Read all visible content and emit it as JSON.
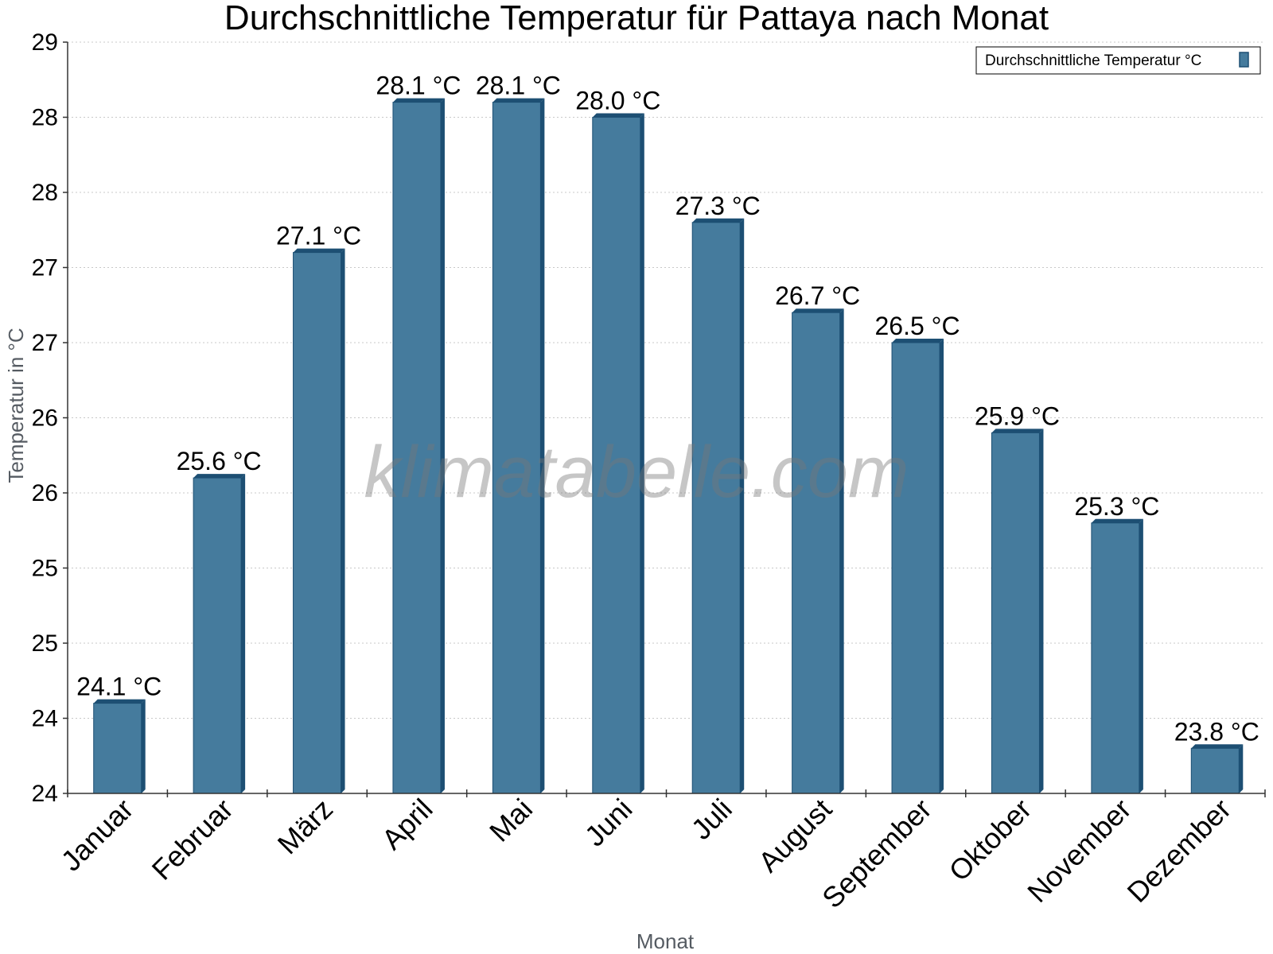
{
  "chart_data": {
    "type": "bar",
    "title": "Durchschnittliche Temperatur für Pattaya nach Monat",
    "xlabel": "Monat",
    "ylabel": "Temperatur in °C",
    "categories": [
      "Januar",
      "Februar",
      "März",
      "April",
      "Mai",
      "Juni",
      "Juli",
      "August",
      "September",
      "Oktober",
      "November",
      "Dezember"
    ],
    "series": [
      {
        "name": "Durchschnittliche Temperatur °C",
        "values": [
          24.1,
          25.6,
          27.1,
          28.1,
          28.1,
          28.0,
          27.3,
          26.7,
          26.5,
          25.9,
          25.3,
          23.8
        ],
        "labels": [
          "24.1 °C",
          "25.6 °C",
          "27.1 °C",
          "28.1 °C",
          "28.1 °C",
          "28.0 °C",
          "27.3 °C",
          "26.7 °C",
          "26.5 °C",
          "25.9 °C",
          "25.3 °C",
          "23.8 °C"
        ]
      }
    ],
    "ylim": [
      23.5,
      28.5
    ],
    "yticks": [
      23.5,
      24.0,
      24.5,
      25.0,
      25.5,
      26.0,
      26.5,
      27.0,
      27.5,
      28.0,
      28.5
    ],
    "ytick_labels": [
      "24",
      "24",
      "25",
      "25",
      "26",
      "26",
      "27",
      "27",
      "28",
      "28",
      "29"
    ],
    "grid": true,
    "legend_position": "top-right",
    "colors": {
      "bar": "#457b9d",
      "bar_side": "#1d4f73",
      "bar_top": "#1d4f73",
      "grid": "#c8c8c8",
      "axis": "#333333"
    }
  },
  "watermark": "klimatabelle.com"
}
